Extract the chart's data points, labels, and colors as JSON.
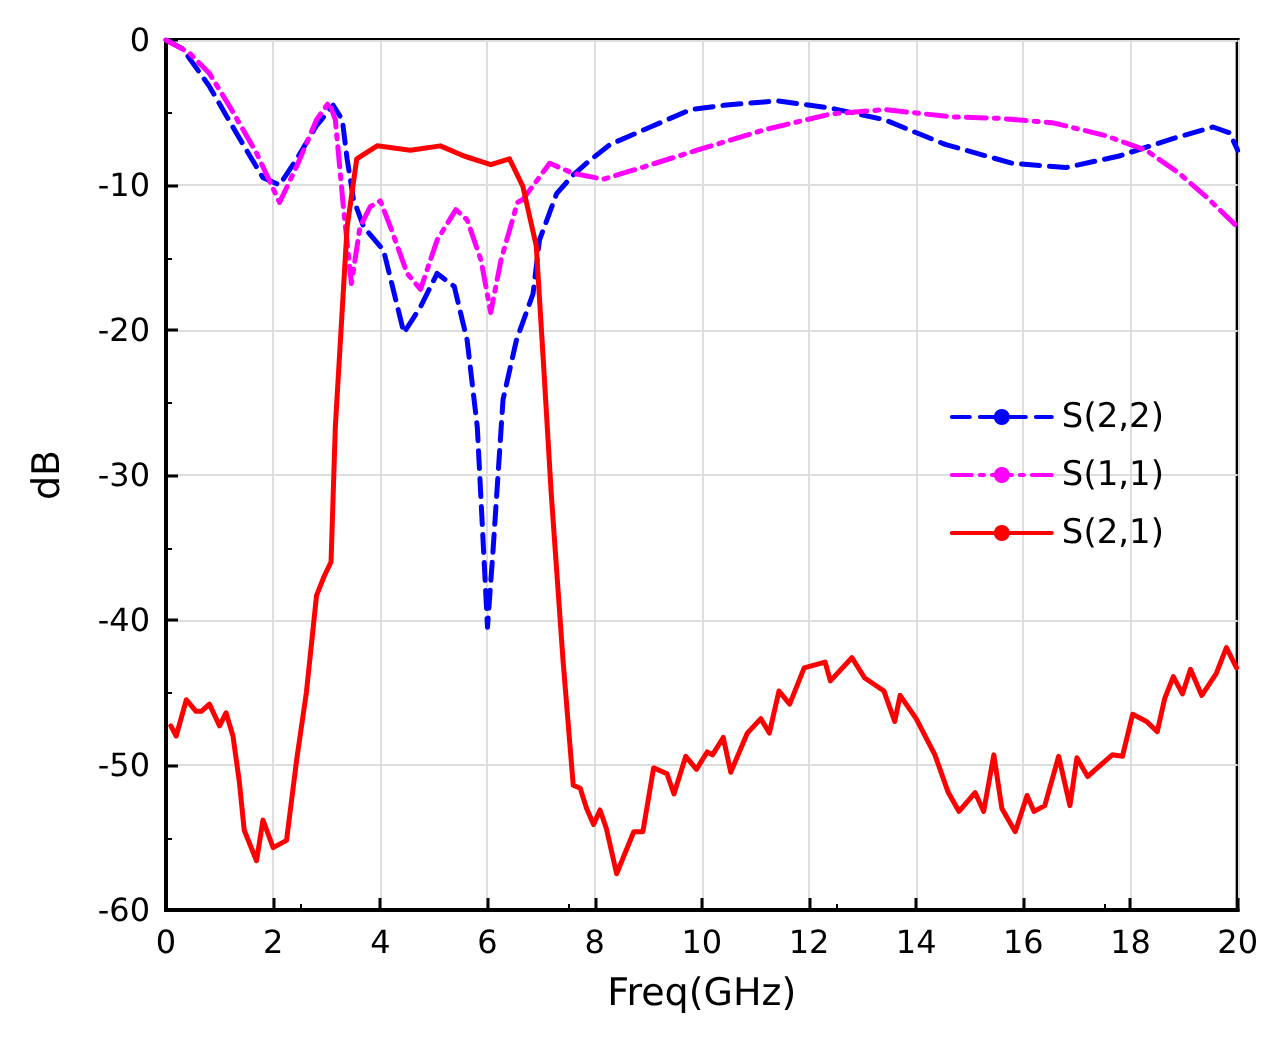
{
  "chart_data": {
    "type": "line",
    "xlabel": "Freq(GHz)",
    "ylabel": "dB",
    "xlim": [
      0,
      20
    ],
    "xticks": [
      0,
      2,
      4,
      6,
      8,
      10,
      12,
      14,
      16,
      18,
      20
    ],
    "ylim": [
      -60,
      0
    ],
    "yticks": [
      -60,
      -50,
      -40,
      -30,
      -20,
      -10,
      0
    ],
    "grid": true,
    "legend": "right",
    "marker": "none",
    "series": [
      {
        "name": "S(2,2)",
        "color": "#0000ff",
        "line_style": "dashed",
        "x": [
          0,
          0.31,
          0.81,
          1.31,
          1.81,
          2.12,
          2.44,
          2.81,
          3.12,
          3.29,
          3.38,
          3.5,
          3.69,
          4.06,
          4.44,
          4.75,
          5.06,
          5.38,
          5.62,
          5.81,
          6.0,
          6.1,
          6.29,
          6.54,
          6.85,
          6.97,
          7.29,
          7.6,
          7.91,
          8.29,
          9.04,
          9.79,
          10.41,
          11.41,
          12.41,
          13.41,
          14.54,
          15.79,
          16.79,
          17.79,
          18.79,
          19.54,
          19.85,
          20
        ],
        "values": [
          0,
          -0.6,
          -3.2,
          -6.4,
          -9.5,
          -10,
          -8.2,
          -5.9,
          -4.5,
          -5.5,
          -8.2,
          -11,
          -12.9,
          -14.5,
          -20.2,
          -18.4,
          -16.1,
          -17,
          -20.7,
          -26.7,
          -40.5,
          -35.4,
          -24.8,
          -20.7,
          -17.5,
          -13.8,
          -10.6,
          -9.3,
          -8.3,
          -7.2,
          -6,
          -4.8,
          -4.5,
          -4.2,
          -4.7,
          -5.5,
          -7.2,
          -8.5,
          -8.8,
          -8,
          -6.8,
          -6,
          -6.4,
          -7.6
        ]
      },
      {
        "name": "S(1,1)",
        "color": "#ff00ff",
        "line_style": "dashdot",
        "x": [
          0,
          0.44,
          0.81,
          1.19,
          1.69,
          2.12,
          2.44,
          2.81,
          3.04,
          3.16,
          3.31,
          3.46,
          3.62,
          3.81,
          4.0,
          4.19,
          4.5,
          4.75,
          5.06,
          5.41,
          5.62,
          5.88,
          6.06,
          6.25,
          6.56,
          6.66,
          7.16,
          7.6,
          8.16,
          8.79,
          9.91,
          11.16,
          12.41,
          13.41,
          14.66,
          15.54,
          16.54,
          17.54,
          18.29,
          18.91,
          19.41,
          20
        ],
        "values": [
          0,
          -0.9,
          -2.3,
          -4.6,
          -7.8,
          -11.2,
          -8.7,
          -5.5,
          -4.3,
          -5.5,
          -11.5,
          -16.8,
          -12.9,
          -11.5,
          -11.1,
          -12.9,
          -16.1,
          -17.2,
          -13.8,
          -11.7,
          -12.4,
          -15.2,
          -18.8,
          -15.2,
          -11.2,
          -11,
          -8.5,
          -9.2,
          -9.6,
          -8.9,
          -7.6,
          -6.2,
          -5.1,
          -4.8,
          -5.3,
          -5.4,
          -5.7,
          -6.6,
          -7.6,
          -9.2,
          -10.8,
          -12.9
        ]
      },
      {
        "name": "S(2,1)",
        "color": "#ff0000",
        "line_style": "solid",
        "x": [
          0.09,
          0.19,
          0.38,
          0.56,
          0.66,
          0.81,
          1.0,
          1.12,
          1.25,
          1.37,
          1.46,
          1.69,
          1.81,
          2.0,
          2.25,
          2.44,
          2.62,
          2.81,
          2.95,
          3.08,
          3.16,
          3.38,
          3.56,
          3.94,
          4.56,
          5.12,
          5.56,
          6.06,
          6.41,
          6.66,
          6.91,
          7.04,
          7.19,
          7.41,
          7.6,
          7.73,
          7.85,
          7.98,
          8.1,
          8.22,
          8.41,
          8.73,
          8.9,
          9.1,
          9.35,
          9.48,
          9.7,
          9.9,
          10.1,
          10.2,
          10.4,
          10.54,
          10.85,
          11.1,
          11.26,
          11.44,
          11.64,
          11.91,
          12.3,
          12.4,
          12.8,
          13.04,
          13.4,
          13.6,
          13.7,
          14.0,
          14.35,
          14.6,
          14.8,
          15.1,
          15.26,
          15.45,
          15.6,
          15.85,
          16.07,
          16.2,
          16.4,
          16.66,
          16.87,
          17.0,
          17.2,
          17.35,
          17.66,
          17.85,
          18.04,
          18.3,
          18.5,
          18.64,
          18.8,
          18.97,
          19.12,
          19.33,
          19.6,
          19.79,
          19.98
        ],
        "values": [
          -47.3,
          -48,
          -45.5,
          -46.3,
          -46.3,
          -45.8,
          -47.3,
          -46.4,
          -48,
          -51.2,
          -54.5,
          -56.6,
          -53.8,
          -55.7,
          -55.2,
          -49.6,
          -45,
          -38.3,
          -37,
          -36,
          -26.7,
          -12.9,
          -8.2,
          -7.3,
          -7.6,
          -7.3,
          -8,
          -8.6,
          -8.2,
          -10.1,
          -14.2,
          -22,
          -31.3,
          -42.8,
          -51.4,
          -51.6,
          -53,
          -54.1,
          -53.1,
          -54.4,
          -57.5,
          -54.6,
          -54.6,
          -50.2,
          -50.6,
          -52,
          -49.4,
          -50.3,
          -49.1,
          -49.3,
          -48.1,
          -50.5,
          -47.8,
          -46.8,
          -47.8,
          -44.9,
          -45.8,
          -43.3,
          -42.9,
          -44.2,
          -42.6,
          -44,
          -44.9,
          -47,
          -45.2,
          -46.8,
          -49.3,
          -51.9,
          -53.2,
          -51.9,
          -53.2,
          -49.3,
          -53,
          -54.6,
          -52.1,
          -53.2,
          -52.8,
          -49.4,
          -52.8,
          -49.5,
          -50.8,
          -50.3,
          -49.3,
          -49.4,
          -46.5,
          -47,
          -47.7,
          -45.4,
          -43.9,
          -45.1,
          -43.4,
          -45.2,
          -43.7,
          -41.9,
          -43.3
        ]
      }
    ]
  }
}
